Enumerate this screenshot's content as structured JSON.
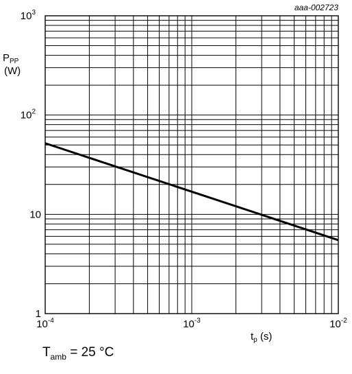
{
  "chart_data": {
    "type": "line",
    "figure_id": "aaa-002723",
    "x_scale": "log",
    "y_scale": "log",
    "xlim": [
      0.0001,
      0.01
    ],
    "ylim": [
      1,
      1000
    ],
    "grid": true,
    "xlabel": {
      "main": "t",
      "sub": "p",
      "unit": " (s)"
    },
    "ylabel": {
      "main": "P",
      "sub": "PP",
      "unit": "(W)"
    },
    "x_ticks": [
      {
        "value": 0.0001,
        "base": "10",
        "exp": "-4"
      },
      {
        "value": 0.001,
        "base": "10",
        "exp": "-3"
      },
      {
        "value": 0.01,
        "base": "10",
        "exp": "-2"
      }
    ],
    "y_ticks": [
      {
        "value": 1,
        "base": "1",
        "exp": ""
      },
      {
        "value": 10,
        "base": "10",
        "exp": ""
      },
      {
        "value": 100,
        "base": "10",
        "exp": "2"
      },
      {
        "value": 1000,
        "base": "10",
        "exp": "3"
      }
    ],
    "series": [
      {
        "x": [
          0.0001,
          0.01
        ],
        "y": [
          52,
          5.5
        ]
      }
    ]
  },
  "condition": {
    "main": "T",
    "sub": "amb",
    "rest": " = 25 °C"
  }
}
